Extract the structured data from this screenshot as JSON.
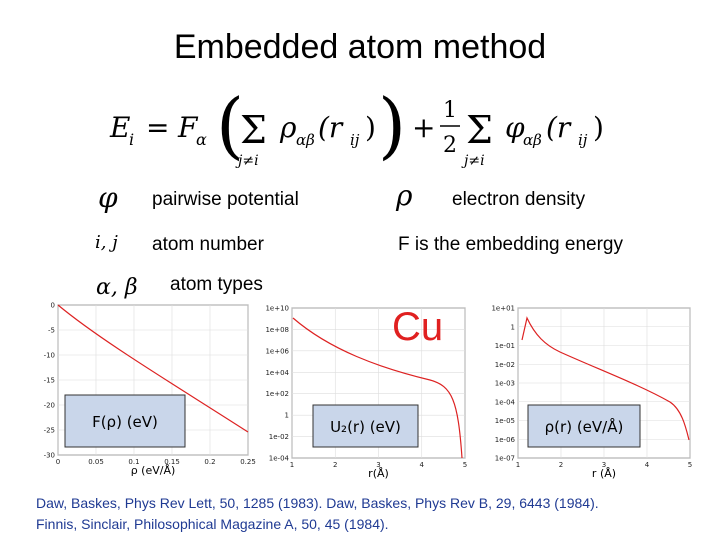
{
  "header": {
    "title": "Embedded atom method"
  },
  "equation": {
    "lhs": "E",
    "lhs_sub": "i",
    "eq": "=",
    "F": "F",
    "F_sub": "α",
    "open": "(",
    "sum1": "Σ",
    "sum1_sub": "j≠i",
    "rho": "ρ",
    "rho_sub": "αβ",
    "r1": "(r",
    "r1_sub": "ij",
    "r1_close": ")",
    "close": ")",
    "plus": "+",
    "num": "1",
    "den": "2",
    "sum2": "Σ",
    "sum2_sub": "j≠i",
    "phi": "φ",
    "phi_sub": "αβ",
    "r2": "(r",
    "r2_sub": "ij",
    "r2_close": ")"
  },
  "legend": [
    {
      "symbol": "φ",
      "text": "pairwise potential"
    },
    {
      "symbol": "ρ",
      "text": "electron density"
    },
    {
      "symbol": "i, j",
      "text": "atom number"
    },
    {
      "symbol": "",
      "text": "F is the embedding energy"
    },
    {
      "symbol": "α, β",
      "text": "atom types"
    }
  ],
  "element": "Cu",
  "plots": [
    {
      "inset": "F(ρ) (eV)",
      "xlabel": "ρ (eV/Å)",
      "yticks": [
        "0",
        "-5",
        "-10",
        "-15",
        "-20",
        "-25",
        "-30"
      ],
      "xticks": [
        "0",
        "0.05",
        "0.1",
        "0.15",
        "0.2",
        "0.25"
      ]
    },
    {
      "inset": "U₂(r) (eV)",
      "xlabel": "r(Å)",
      "yticks": [
        "1e+10",
        "1e+08",
        "1e+06",
        "1e+04",
        "1e+02",
        "1",
        "1e-02",
        "1e-04"
      ],
      "xticks": [
        "1",
        "2",
        "3",
        "4",
        "5"
      ]
    },
    {
      "inset": "ρ(r) (eV/Å)",
      "xlabel": "r (Å)",
      "yticks": [
        "1e+01",
        "1",
        "1e-01",
        "1e-02",
        "1e-03",
        "1e-04",
        "1e-05",
        "1e-06",
        "1e-07"
      ],
      "xticks": [
        "1",
        "2",
        "3",
        "4",
        "5"
      ]
    }
  ],
  "references": [
    "Daw, Baskes, Phys Rev Lett, 50, 1285 (1983). Daw, Baskes, Phys Rev B, 29, 6443 (1984).",
    "Finnis, Sinclair, Philosophical Magazine A, 50, 45 (1984)."
  ]
}
